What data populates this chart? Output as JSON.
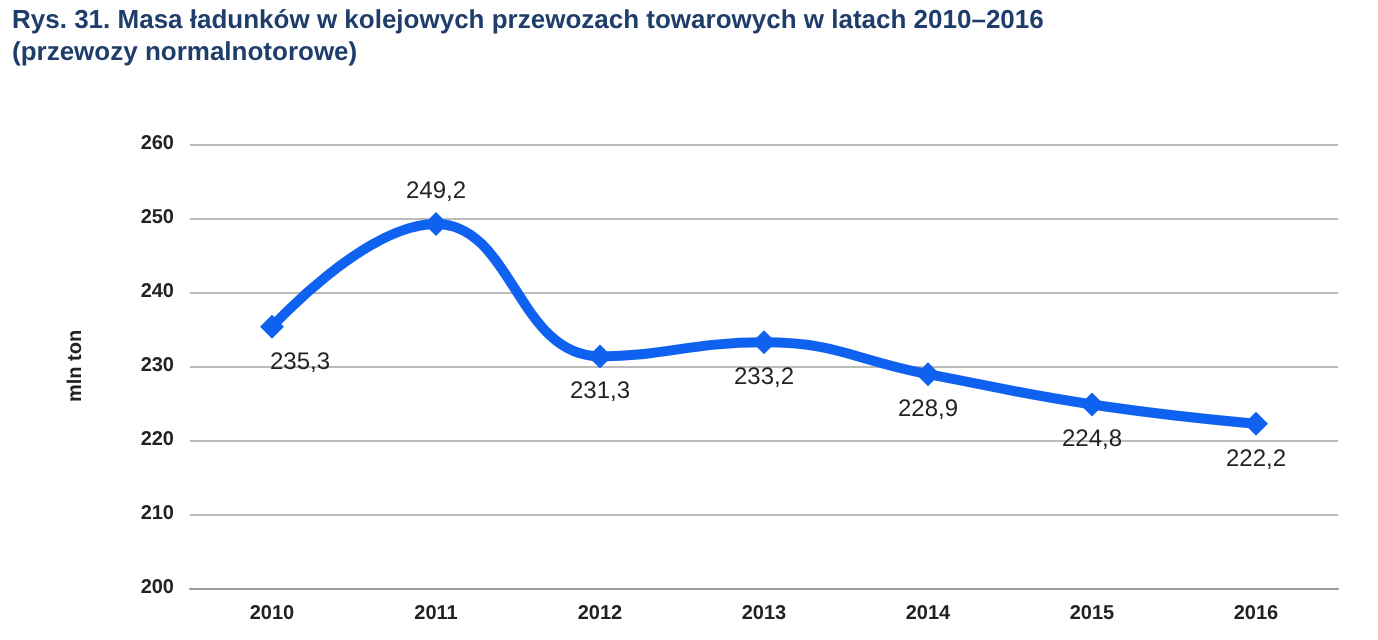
{
  "chart_data": {
    "type": "line",
    "title": "Rys. 31. Masa ładunków w kolejowych przewozach towarowych w latach 2010–2016\n(przewozy normalnotorowe)",
    "ylabel": "mln ton",
    "categories": [
      "2010",
      "2011",
      "2012",
      "2013",
      "2014",
      "2015",
      "2016"
    ],
    "series": [
      {
        "color": "#0f62f0",
        "values": [
          235.3,
          249.2,
          231.3,
          233.2,
          228.9,
          224.8,
          222.2
        ],
        "value_labels": [
          "235,3",
          "249,2",
          "231,3",
          "233,2",
          "228,9",
          "224,8",
          "222,2"
        ]
      }
    ],
    "ylim": [
      200,
      260
    ],
    "yticks": [
      200,
      210,
      220,
      230,
      240,
      250,
      260
    ],
    "grid": "y",
    "marker": "diamond",
    "line_style": "solid"
  }
}
